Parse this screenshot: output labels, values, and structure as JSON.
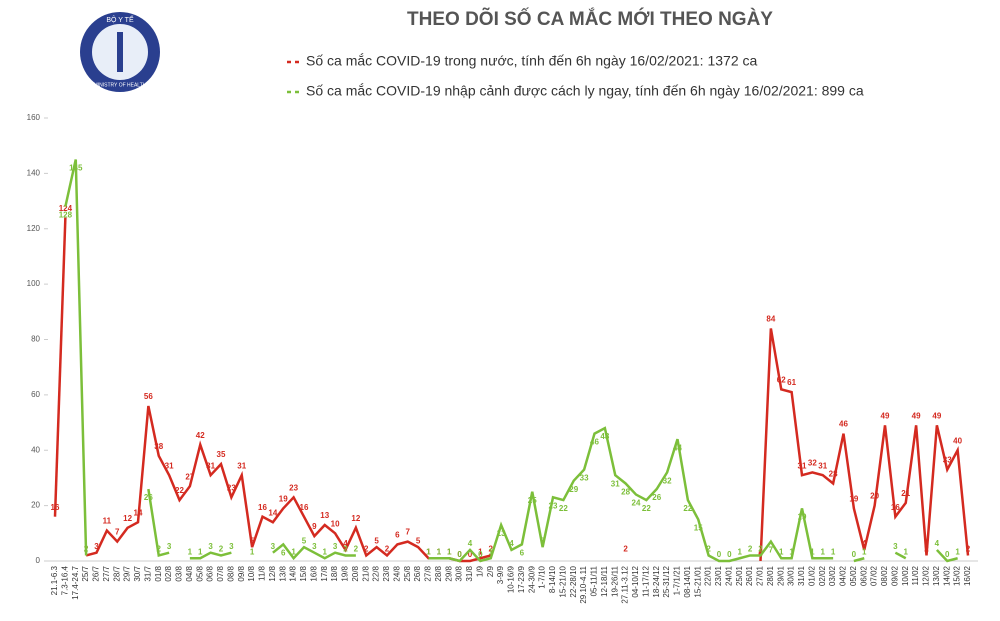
{
  "logo": {
    "top": "BỘ Y TẾ",
    "bottom": "MINISTRY OF HEALTH"
  },
  "chart_data": {
    "type": "line",
    "title": "THEO DÕI SỐ CA MẮC MỚI THEO NGÀY",
    "categories": [
      "21.1-6.3",
      "7.3-16.4",
      "17.4-24.7",
      "25/7",
      "26/7",
      "27/7",
      "28/7",
      "29/7",
      "30/7",
      "31/7",
      "01/8",
      "02/8",
      "03/8",
      "04/8",
      "05/8",
      "06/8",
      "07/8",
      "08/8",
      "09/8",
      "10/8",
      "11/8",
      "12/8",
      "13/8",
      "14/8",
      "15/8",
      "16/8",
      "17/8",
      "18/8",
      "19/8",
      "20/8",
      "21/8",
      "22/8",
      "23/8",
      "24/8",
      "25/8",
      "26/8",
      "27/8",
      "28/8",
      "29/8",
      "30/8",
      "31/8",
      "1/9",
      "2/9",
      "3-9/9",
      "10-16/9",
      "17-23/9",
      "24-30/9",
      "1-7/10",
      "8-14/10",
      "15-21/10",
      "22-28/10",
      "29.10-4.11",
      "05-11/11",
      "12-18/11",
      "19-26/11",
      "27.11-3.12",
      "04-10/12",
      "11-17/12",
      "18-24/12",
      "25-31/12",
      "1-7/1/21",
      "08-14/01",
      "15-21/01",
      "22/01",
      "23/01",
      "24/01",
      "25/01",
      "26/01",
      "27/01",
      "28/01",
      "29/01",
      "30/01",
      "31/01",
      "01/02",
      "02/02",
      "03/02",
      "04/02",
      "05/02",
      "06/02",
      "07/02",
      "08/02",
      "09/02",
      "10/02",
      "11/02",
      "12/02",
      "13/02",
      "14/02",
      "15/02",
      "16/02"
    ],
    "series": [
      {
        "name": "Số ca mắc COVID-19 trong nước, tính đến 6h ngày 16/02/2021: 1372 ca",
        "color": "#d42a20",
        "values": [
          16,
          124,
          null,
          2,
          3,
          11,
          7,
          12,
          14,
          56,
          38,
          31,
          22,
          27,
          42,
          31,
          35,
          23,
          31,
          5,
          16,
          14,
          19,
          23,
          16,
          9,
          13,
          10,
          4,
          12,
          2,
          5,
          2,
          6,
          7,
          5,
          1,
          1,
          1,
          0,
          0,
          1,
          2,
          null,
          null,
          null,
          null,
          null,
          null,
          null,
          null,
          null,
          null,
          null,
          null,
          2,
          null,
          null,
          null,
          null,
          null,
          null,
          null,
          null,
          null,
          null,
          null,
          null,
          0,
          84,
          62,
          61,
          31,
          32,
          31,
          28,
          46,
          19,
          4,
          20,
          49,
          16,
          21,
          49,
          2,
          49,
          33,
          40,
          2
        ]
      },
      {
        "name": "Số ca mắc COVID-19 nhập cảnh được cách ly ngay, tính đến 6h ngày 16/02/2021: 899 ca",
        "color": "#7cbf3a",
        "values": [
          null,
          128,
          145,
          2,
          null,
          null,
          null,
          null,
          null,
          26,
          2,
          3,
          null,
          1,
          1,
          3,
          2,
          3,
          null,
          1,
          null,
          3,
          6,
          1,
          5,
          3,
          1,
          3,
          2,
          2,
          null,
          null,
          null,
          null,
          null,
          null,
          1,
          1,
          1,
          0,
          4,
          0,
          1,
          13,
          4,
          6,
          25,
          5,
          23,
          22,
          29,
          33,
          46,
          48,
          31,
          28,
          24,
          22,
          26,
          32,
          44,
          22,
          15,
          2,
          0,
          0,
          1,
          2,
          2,
          7,
          1,
          1,
          19,
          1,
          1,
          1,
          null,
          0,
          1,
          null,
          null,
          3,
          1,
          null,
          null,
          4,
          0,
          1,
          null
        ]
      }
    ],
    "ylim": [
      0,
      160
    ],
    "yticks": [
      0,
      20,
      40,
      60,
      80,
      100,
      120,
      140,
      160
    ],
    "grid": false
  }
}
